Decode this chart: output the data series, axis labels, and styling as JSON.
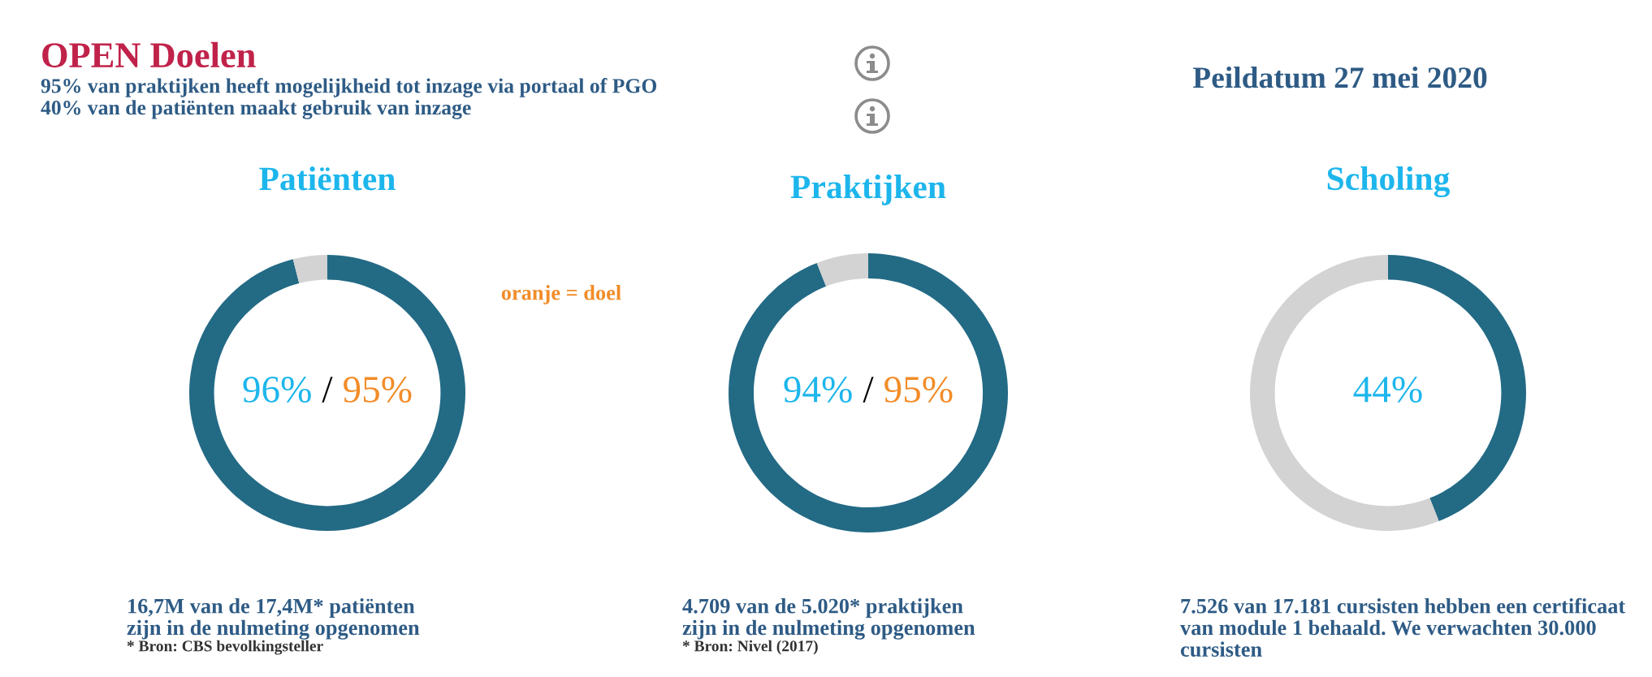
{
  "chart_data": [
    {
      "type": "other",
      "title": "OPEN Doelen",
      "annotations": [
        "95% van praktijken heeft mogelijkheid tot inzage via portaal of PGO",
        "40% van de patiënten maakt gebruik van inzage",
        "Peildatum 27 mei 2020",
        "oranje = doel"
      ]
    },
    {
      "type": "donut",
      "title": "Patiënten",
      "categories": [
        null,
        null
      ],
      "values": [
        96,
        4
      ],
      "colors": [
        "#236a85",
        "#d3d3d3"
      ],
      "value_labels": [
        "96%",
        null
      ],
      "annotations": [
        "/",
        "95%",
        "* Bron: CBS bevolkingsteller"
      ],
      "xlabel": "16,7M van de 17,4M* patiënten\nzijn in de nulmeting opgenomen"
    },
    {
      "type": "donut",
      "title": "Praktijken",
      "categories": [
        null,
        null
      ],
      "values": [
        94,
        6
      ],
      "colors": [
        "#236a85",
        "#d3d3d3"
      ],
      "value_labels": [
        "94%",
        null
      ],
      "annotations": [
        "/",
        "95%",
        "* Bron: Nivel (2017)"
      ],
      "xlabel": "4.709 van de 5.020* praktijken\nzijn in de nulmeting opgenomen"
    },
    {
      "type": "donut",
      "title": "Scholing",
      "categories": [
        null,
        null
      ],
      "values": [
        44,
        56
      ],
      "colors": [
        "#236a85",
        "#d3d3d3"
      ],
      "value_labels": [
        "44%",
        null
      ],
      "xlabel": "7.526 van 17.181 cursisten hebben een certificaat\nvan module 1 behaald. We verwachten 30.000\ncursisten"
    }
  ]
}
